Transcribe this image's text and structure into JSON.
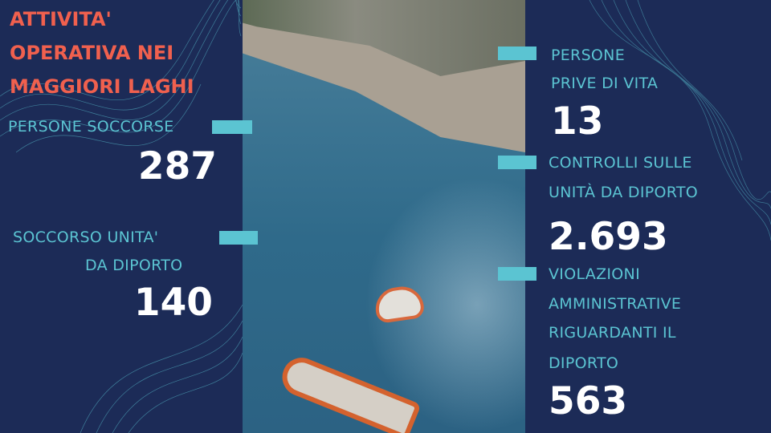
{
  "title_lines": [
    "ATTIVITA'",
    "OPERATIVA  NEI",
    "MAGGIORI LAGHI"
  ],
  "colors": {
    "background": "#1c2b57",
    "title": "#f0604e",
    "label": "#5bc4d2",
    "number": "#ffffff"
  },
  "stats": {
    "persone_soccorse": {
      "label": "PERSONE SOCCORSE",
      "value": "287"
    },
    "soccorso_unita": {
      "label_lines": [
        "SOCCORSO UNITA'",
        "DA DIPORTO"
      ],
      "value": "140"
    },
    "persone_prive_di_vita": {
      "label_lines": [
        "PERSONE",
        "PRIVE DI VITA"
      ],
      "value": "13"
    },
    "controlli": {
      "label_lines": [
        "CONTROLLI SULLE",
        "UNITÀ DA DIPORTO"
      ],
      "value": "2.693"
    },
    "violazioni": {
      "label_lines": [
        "VIOLAZIONI",
        "AMMINISTRATIVE",
        "RIGUARDANTI IL",
        "DIPORTO"
      ],
      "value": "563"
    }
  }
}
